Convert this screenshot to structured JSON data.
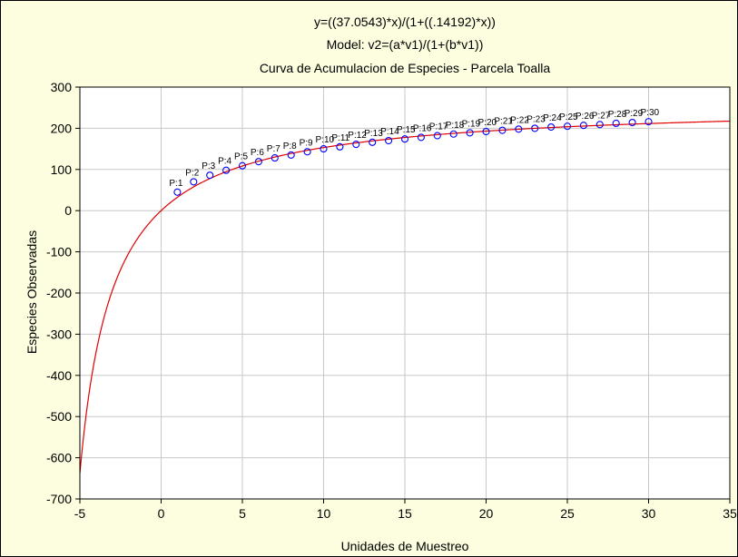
{
  "colors": {
    "background": "#fdfddf",
    "plot_area": "#ffffff",
    "grid": "#c8c8c8",
    "curve": "#e00000",
    "points": "#0000ff",
    "axis": "#000000"
  },
  "chart_data": {
    "type": "scatter",
    "title_lines": [
      "y=((37.0543)*x)/(1+((.14192)*x))",
      "Model: v2=(a*v1)/(1+(b*v1))",
      "Curva de Acumulacion de Especies - Parcela Toalla"
    ],
    "xlabel": "Unidades de Muestreo",
    "ylabel": "Especies Observadas",
    "xlim": [
      -5,
      35
    ],
    "ylim": [
      -700,
      300
    ],
    "xticks": [
      -5,
      0,
      5,
      10,
      15,
      20,
      25,
      30,
      35
    ],
    "yticks": [
      300,
      200,
      100,
      0,
      -100,
      -200,
      -300,
      -400,
      -500,
      -600,
      -700
    ],
    "grid": true,
    "model": {
      "a": 37.0543,
      "b": 0.14192
    },
    "series": [
      {
        "x": [
          1,
          2,
          3,
          4,
          5,
          6,
          7,
          8,
          9,
          10,
          11,
          12,
          13,
          14,
          15,
          16,
          17,
          18,
          19,
          20,
          21,
          22,
          23,
          24,
          25,
          26,
          27,
          28,
          29,
          30
        ],
        "y": [
          45,
          70,
          86,
          98,
          109,
          119,
          128,
          135,
          143,
          150,
          155,
          161,
          166,
          170,
          174,
          178,
          182,
          186,
          189,
          192,
          195,
          198,
          200,
          203,
          205,
          207,
          209,
          212,
          214,
          216
        ],
        "labels": [
          "P:1",
          "P:2",
          "P:3",
          "P:4",
          "P:5",
          "P:6",
          "P:7",
          "P:8",
          "P:9",
          "P:10",
          "P:11",
          "P:12",
          "P:13",
          "P:14",
          "P:15",
          "P:16",
          "P:17",
          "P:18",
          "P:19",
          "P:20",
          "P:21",
          "P:22",
          "P:23",
          "P:24",
          "P:25",
          "P:26",
          "P:27",
          "P:28",
          "P:29",
          "P:30"
        ]
      }
    ]
  }
}
